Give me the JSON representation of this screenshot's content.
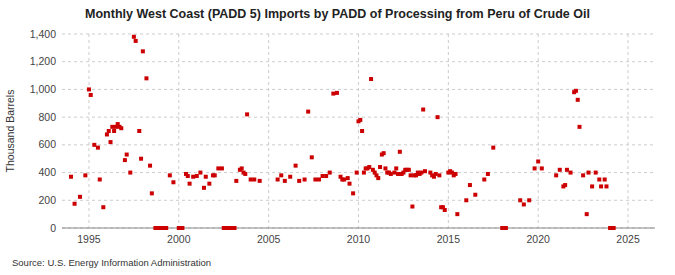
{
  "chart_data": {
    "type": "scatter",
    "title": "Monthly West Coast (PADD 5) Imports by PADD of Processing from Peru of Crude Oil",
    "ylabel": "Thousand Barrels",
    "source": "Source: U.S. Energy Information Administration",
    "color": "#cc0000",
    "marker": "square",
    "grid": true,
    "xlim": [
      1993.5,
      2026.5
    ],
    "ylim": [
      0,
      1400
    ],
    "xticks": [
      1995,
      2000,
      2005,
      2010,
      2015,
      2020,
      2025
    ],
    "yticks": [
      0,
      200,
      400,
      600,
      800,
      {
        "value": 1000,
        "label": "1,000"
      },
      {
        "value": 1200,
        "label": "1,200"
      },
      {
        "value": 1400,
        "label": "1,400"
      }
    ],
    "x": [
      1994.0,
      1994.2,
      1994.5,
      1994.8,
      1995.0,
      1995.1,
      1995.3,
      1995.5,
      1995.6,
      1995.8,
      1996.0,
      1996.1,
      1996.2,
      1996.3,
      1996.4,
      1996.5,
      1996.6,
      1996.7,
      1996.8,
      1997.0,
      1997.1,
      1997.3,
      1997.5,
      1997.6,
      1997.8,
      1997.9,
      1998.0,
      1998.2,
      1998.4,
      1998.5,
      1998.7,
      1998.8,
      1998.9,
      1999.0,
      1999.1,
      1999.2,
      1999.3,
      1999.5,
      1999.7,
      2000.0,
      2000.1,
      2000.2,
      2000.4,
      2000.5,
      2000.6,
      2000.8,
      2001.0,
      2001.2,
      2001.4,
      2001.5,
      2001.7,
      2001.9,
      2002.0,
      2002.2,
      2002.4,
      2002.5,
      2002.6,
      2002.7,
      2002.8,
      2002.9,
      2003.0,
      2003.1,
      2003.2,
      2003.4,
      2003.5,
      2003.6,
      2003.7,
      2003.8,
      2004.0,
      2004.2,
      2004.5,
      2005.5,
      2005.7,
      2005.9,
      2006.2,
      2006.5,
      2006.7,
      2007.0,
      2007.2,
      2007.4,
      2007.6,
      2007.8,
      2008.0,
      2008.2,
      2008.4,
      2008.6,
      2008.8,
      2009.0,
      2009.1,
      2009.2,
      2009.4,
      2009.5,
      2009.7,
      2009.9,
      2010.0,
      2010.1,
      2010.2,
      2010.3,
      2010.4,
      2010.5,
      2010.6,
      2010.7,
      2010.8,
      2010.9,
      2011.0,
      2011.1,
      2011.2,
      2011.3,
      2011.4,
      2011.5,
      2011.6,
      2011.7,
      2011.8,
      2012.0,
      2012.1,
      2012.2,
      2012.3,
      2012.4,
      2012.5,
      2012.6,
      2012.7,
      2012.8,
      2012.9,
      2013.0,
      2013.1,
      2013.2,
      2013.3,
      2013.4,
      2013.5,
      2013.6,
      2013.7,
      2014.0,
      2014.1,
      2014.2,
      2014.3,
      2014.4,
      2014.5,
      2014.6,
      2014.7,
      2014.8,
      2015.0,
      2015.1,
      2015.2,
      2015.3,
      2015.4,
      2015.5,
      2016.0,
      2016.2,
      2016.5,
      2017.0,
      2017.2,
      2017.5,
      2018.0,
      2018.2,
      2019.0,
      2019.2,
      2019.5,
      2019.8,
      2020.0,
      2020.2,
      2021.0,
      2021.2,
      2021.4,
      2021.5,
      2021.6,
      2021.8,
      2022.0,
      2022.1,
      2022.2,
      2022.3,
      2022.5,
      2022.7,
      2022.8,
      2023.0,
      2023.2,
      2023.4,
      2023.5,
      2023.7,
      2023.8,
      2024.0,
      2024.2
    ],
    "values": [
      370,
      175,
      225,
      380,
      1000,
      960,
      600,
      580,
      350,
      150,
      675,
      700,
      620,
      730,
      700,
      730,
      750,
      730,
      720,
      490,
      530,
      400,
      1380,
      1350,
      700,
      500,
      1275,
      1080,
      450,
      250,
      0,
      0,
      0,
      0,
      0,
      0,
      0,
      380,
      330,
      0,
      0,
      0,
      390,
      375,
      320,
      370,
      375,
      400,
      290,
      370,
      320,
      380,
      380,
      430,
      430,
      0,
      0,
      0,
      0,
      0,
      0,
      0,
      340,
      420,
      430,
      400,
      390,
      820,
      350,
      350,
      340,
      350,
      380,
      340,
      370,
      450,
      340,
      350,
      840,
      510,
      350,
      350,
      375,
      375,
      400,
      970,
      975,
      370,
      350,
      350,
      360,
      320,
      250,
      400,
      770,
      780,
      700,
      400,
      430,
      430,
      440,
      1075,
      420,
      400,
      380,
      360,
      440,
      530,
      540,
      430,
      400,
      400,
      390,
      400,
      430,
      390,
      550,
      390,
      400,
      420,
      420,
      420,
      380,
      155,
      380,
      380,
      400,
      390,
      400,
      855,
      410,
      400,
      380,
      370,
      390,
      800,
      380,
      150,
      150,
      130,
      400,
      410,
      400,
      380,
      390,
      100,
      200,
      310,
      240,
      350,
      390,
      580,
      0,
      0,
      200,
      170,
      200,
      430,
      480,
      430,
      380,
      420,
      300,
      310,
      420,
      400,
      980,
      990,
      925,
      730,
      380,
      100,
      400,
      300,
      400,
      350,
      300,
      350,
      300,
      0,
      0
    ]
  }
}
